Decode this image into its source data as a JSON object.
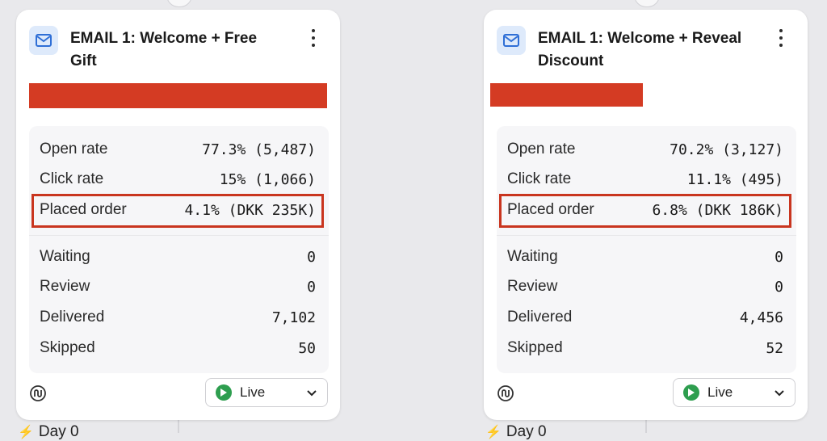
{
  "cards": [
    {
      "title": "EMAIL 1: Welcome + Free Gift",
      "metrics": [
        {
          "label": "Open rate",
          "value": "77.3% (5,487)"
        },
        {
          "label": "Click rate",
          "value": "15% (1,066)"
        },
        {
          "label": "Placed order",
          "value": "4.1% (DKK 235K)"
        }
      ],
      "counts": [
        {
          "label": "Waiting",
          "value": "0"
        },
        {
          "label": "Review",
          "value": "0"
        },
        {
          "label": "Delivered",
          "value": "7,102"
        },
        {
          "label": "Skipped",
          "value": "50"
        }
      ],
      "status": "Live",
      "day_label": "Day 0"
    },
    {
      "title": "EMAIL 1: Welcome + Reveal Discount",
      "metrics": [
        {
          "label": "Open rate",
          "value": "70.2% (3,127)"
        },
        {
          "label": "Click rate",
          "value": "11.1% (495)"
        },
        {
          "label": "Placed order",
          "value": "6.8% (DKK 186K)"
        }
      ],
      "counts": [
        {
          "label": "Waiting",
          "value": "0"
        },
        {
          "label": "Review",
          "value": "0"
        },
        {
          "label": "Delivered",
          "value": "4,456"
        },
        {
          "label": "Skipped",
          "value": "52"
        }
      ],
      "status": "Live",
      "day_label": "Day 0"
    }
  ],
  "colors": {
    "highlight_border": "#c9351f",
    "redaction_bar": "#d43b23",
    "live_status": "#2e9e4f",
    "email_icon_bg": "#deeafb"
  },
  "icons": [
    "email-icon",
    "more-vertical-icon",
    "loop-icon",
    "live-play-icon",
    "chevron-down-icon",
    "bolt-icon"
  ]
}
